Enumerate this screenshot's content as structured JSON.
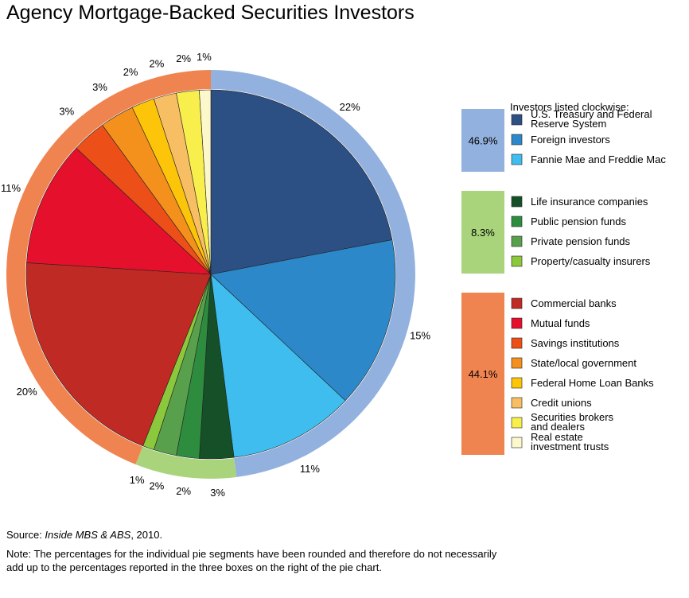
{
  "chart_data": {
    "type": "pie",
    "title": "Agency Mortgage-Backed Securities Investors",
    "legend_heading": "Investors listed clockwise:",
    "slices": [
      {
        "name": "U.S. Treasury and Federal Reserve System",
        "value": 22,
        "label": "22%",
        "color": "#2c4f84"
      },
      {
        "name": "Foreign investors",
        "value": 15,
        "label": "15%",
        "color": "#2c88c8"
      },
      {
        "name": "Fannie Mae and Freddie Mac",
        "value": 11,
        "label": "11%",
        "color": "#3fbdee"
      },
      {
        "name": "Life insurance companies",
        "value": 3,
        "label": "3%",
        "color": "#165028"
      },
      {
        "name": "Public pension funds",
        "value": 2,
        "label": "2%",
        "color": "#2e8c3e"
      },
      {
        "name": "Private pension funds",
        "value": 2,
        "label": "2%",
        "color": "#58a04c"
      },
      {
        "name": "Property/casualty insurers",
        "value": 1,
        "label": "1%",
        "color": "#8cc83c"
      },
      {
        "name": "Commercial banks",
        "value": 20,
        "label": "20%",
        "color": "#c02a24"
      },
      {
        "name": "Mutual funds",
        "value": 11,
        "label": "11%",
        "color": "#e4102c"
      },
      {
        "name": "Savings institutions",
        "value": 3,
        "label": "3%",
        "color": "#ec5018"
      },
      {
        "name": "State/local government",
        "value": 3,
        "label": "3%",
        "color": "#f4901c"
      },
      {
        "name": "Federal Home Loan Banks",
        "value": 2,
        "label": "2%",
        "color": "#fcc50a"
      },
      {
        "name": "Credit unions",
        "value": 2,
        "label": "2%",
        "color": "#f8be64"
      },
      {
        "name": "Securities brokers and dealers",
        "value": 2,
        "label": "2%",
        "color": "#f8ee4c"
      },
      {
        "name": "Real estate investment trusts",
        "value": 1,
        "label": "1%",
        "color": "#fcf8cc"
      }
    ],
    "groups": [
      {
        "label": "46.9%",
        "value": 46.9,
        "color": "#93b1de",
        "members": [
          0,
          1,
          2
        ]
      },
      {
        "label": "8.3%",
        "value": 8.3,
        "color": "#a9d47c",
        "members": [
          3,
          4,
          5,
          6
        ]
      },
      {
        "label": "44.1%",
        "value": 44.1,
        "color": "#f08450",
        "members": [
          7,
          8,
          9,
          10,
          11,
          12,
          13,
          14
        ]
      }
    ]
  },
  "footer": {
    "source_prefix": "Source: ",
    "source_title": "Inside MBS & ABS",
    "source_suffix": ", 2010.",
    "note": "Note: The percentages for the individual pie segments have been rounded and therefore do not necessarily add up to the percentages reported in the three boxes on the right of the pie chart."
  }
}
